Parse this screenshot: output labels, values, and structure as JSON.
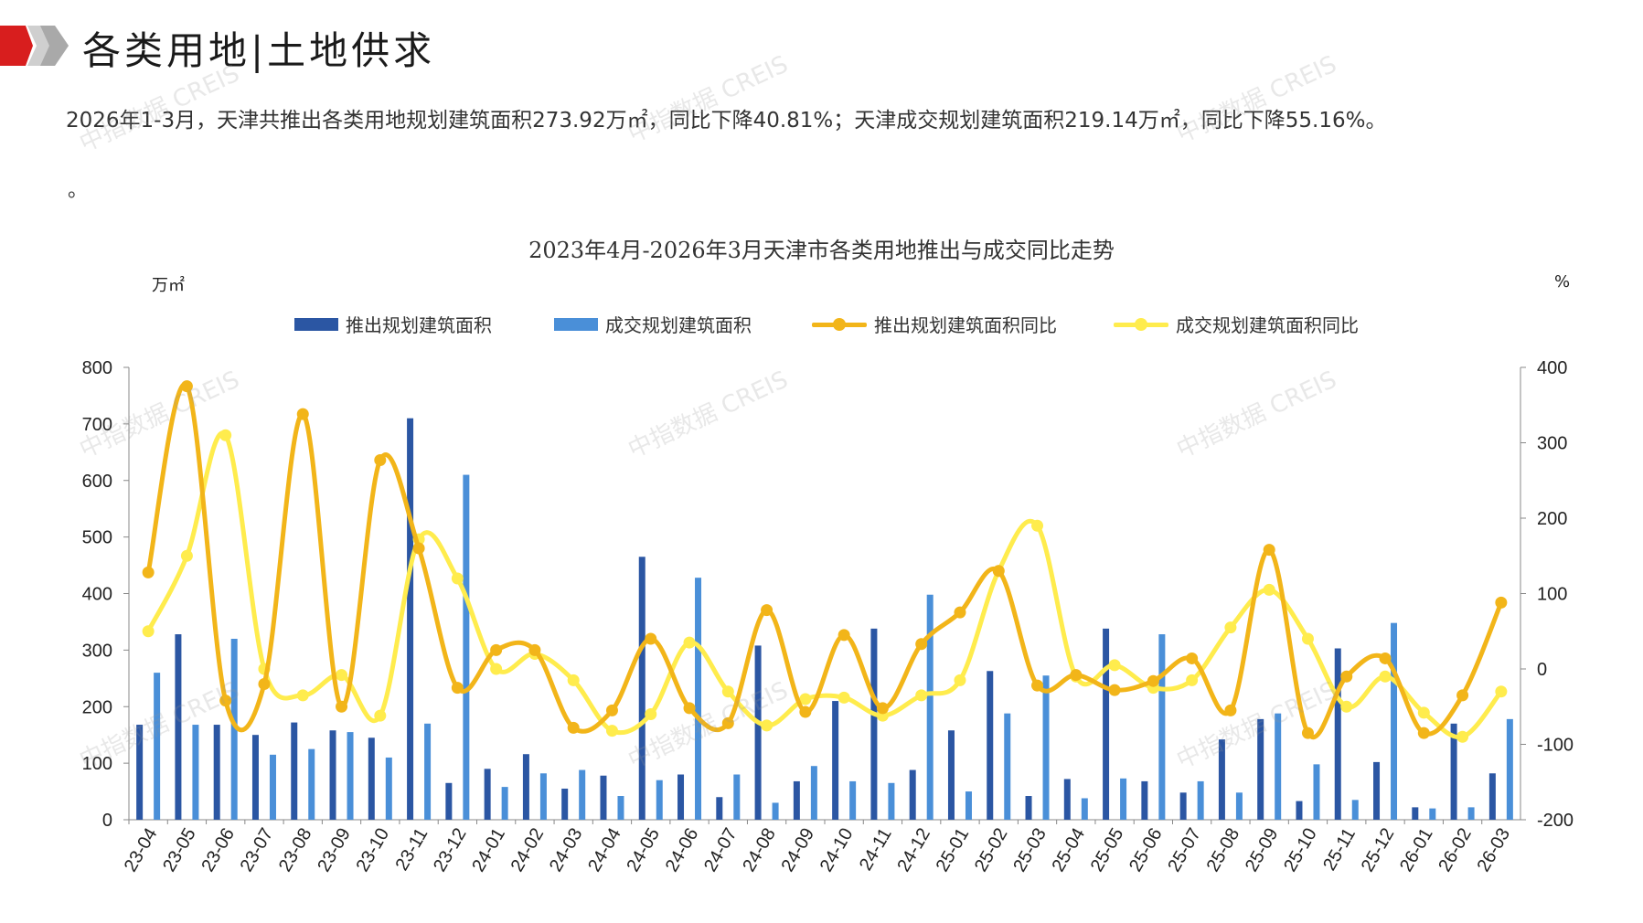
{
  "header": {
    "title": "各类用地|土地供求"
  },
  "summary": {
    "text": "2026年1-3月，天津共推出各类用地规划建筑面积273.92万㎡，同比下降40.81%；天津成交规划建筑面积219.14万㎡，同比下降55.16%。",
    "trailing": "。"
  },
  "watermark": "中指数据 CREIS",
  "chart_data": {
    "type": "bar",
    "title": "2023年4月-2026年3月天津市各类用地推出与成交同比走势",
    "ylabel_left": "万㎡",
    "ylabel_right": "%",
    "ylim_left": [
      0,
      800
    ],
    "ylim_right": [
      -200,
      400
    ],
    "yticks_left": [
      0,
      100,
      200,
      300,
      400,
      500,
      600,
      700,
      800
    ],
    "yticks_right": [
      -200,
      -100,
      0,
      100,
      200,
      300,
      400
    ],
    "categories": [
      "23-04",
      "23-05",
      "23-06",
      "23-07",
      "23-08",
      "23-09",
      "23-10",
      "23-11",
      "23-12",
      "24-01",
      "24-02",
      "24-03",
      "24-04",
      "24-05",
      "24-06",
      "24-07",
      "24-08",
      "24-09",
      "24-10",
      "24-11",
      "24-12",
      "25-01",
      "25-02",
      "25-03",
      "25-04",
      "25-05",
      "25-06",
      "25-07",
      "25-08",
      "25-09",
      "25-10",
      "25-11",
      "25-12",
      "26-01",
      "26-02",
      "26-03"
    ],
    "series": [
      {
        "name": "推出规划建筑面积",
        "kind": "bar",
        "axis": "left",
        "color": "#2b56a3",
        "values": [
          168,
          328,
          168,
          150,
          172,
          158,
          145,
          710,
          65,
          90,
          116,
          55,
          78,
          465,
          80,
          40,
          308,
          68,
          210,
          338,
          88,
          158,
          263,
          42,
          72,
          338,
          68,
          48,
          142,
          178,
          33,
          303,
          102,
          22,
          170,
          82
        ]
      },
      {
        "name": "成交规划建筑面积",
        "kind": "bar",
        "axis": "left",
        "color": "#4a8fd8",
        "values": [
          260,
          168,
          320,
          115,
          125,
          155,
          110,
          170,
          610,
          58,
          82,
          88,
          42,
          70,
          428,
          80,
          30,
          95,
          68,
          65,
          398,
          50,
          188,
          255,
          38,
          73,
          328,
          68,
          48,
          188,
          98,
          35,
          348,
          20,
          22,
          178
        ]
      },
      {
        "name": "推出规划建筑面积同比",
        "kind": "line",
        "axis": "right",
        "color": "#f2b519",
        "values": [
          128,
          375,
          -42,
          -20,
          338,
          -50,
          277,
          160,
          -25,
          25,
          25,
          -78,
          -55,
          40,
          -52,
          -72,
          78,
          -57,
          45,
          -52,
          33,
          75,
          130,
          -22,
          -8,
          -28,
          -16,
          14,
          -55,
          158,
          -85,
          -10,
          14,
          -85,
          -35,
          88
        ]
      },
      {
        "name": "成交规划建筑面积同比",
        "kind": "line",
        "axis": "right",
        "color": "#ffec4d",
        "values": [
          50,
          150,
          310,
          0,
          -35,
          -8,
          -62,
          172,
          120,
          0,
          20,
          -15,
          -82,
          -60,
          35,
          -30,
          -75,
          -40,
          -38,
          -62,
          -35,
          -15,
          130,
          190,
          -10,
          5,
          -25,
          -15,
          55,
          105,
          40,
          -50,
          -10,
          -58,
          -90,
          -30
        ]
      }
    ],
    "grid": false,
    "legend": "top"
  }
}
